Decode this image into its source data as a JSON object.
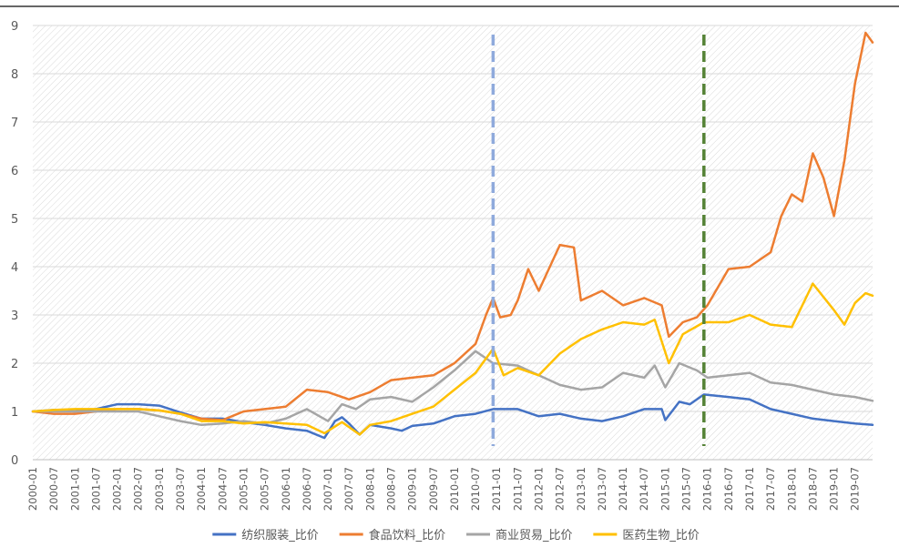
{
  "chart_data": {
    "type": "line",
    "title": "",
    "xlabel": "",
    "ylabel": "",
    "ylim": [
      0,
      9
    ],
    "yticks": [
      "0",
      "1",
      "2",
      "3",
      "4",
      "5",
      "6",
      "7",
      "8",
      "9"
    ],
    "xticks": [
      "2000-01",
      "2000-07",
      "2001-01",
      "2001-07",
      "2002-01",
      "2002-07",
      "2003-01",
      "2003-07",
      "2004-01",
      "2004-07",
      "2005-01",
      "2005-07",
      "2006-01",
      "2006-07",
      "2007-01",
      "2007-07",
      "2008-01",
      "2008-07",
      "2009-01",
      "2009-07",
      "2010-01",
      "2010-07",
      "2011-01",
      "2011-07",
      "2012-01",
      "2012-07",
      "2013-01",
      "2013-07",
      "2014-01",
      "2014-07",
      "2015-01",
      "2015-07",
      "2016-01",
      "2016-07",
      "2017-01",
      "2017-07",
      "2018-01",
      "2018-07",
      "2019-01",
      "2019-07"
    ],
    "x_range": [
      "2000-01",
      "2019-12"
    ],
    "grid": true,
    "background": "diagonal hatch",
    "legend_position": "bottom",
    "vlines": [
      {
        "x": "2010-12",
        "color": "#8faadc",
        "style": "dashed"
      },
      {
        "x": "2015-12",
        "color": "#548235",
        "style": "dashed"
      }
    ],
    "series": [
      {
        "name": "纺织服装_比价",
        "color": "#4472c4",
        "points": [
          [
            "2000-01",
            1.0
          ],
          [
            "2000-07",
            1.03
          ],
          [
            "2001-01",
            1.0
          ],
          [
            "2001-07",
            1.05
          ],
          [
            "2002-01",
            1.15
          ],
          [
            "2002-07",
            1.15
          ],
          [
            "2003-01",
            1.12
          ],
          [
            "2003-07",
            0.98
          ],
          [
            "2004-01",
            0.85
          ],
          [
            "2004-07",
            0.85
          ],
          [
            "2005-01",
            0.78
          ],
          [
            "2005-07",
            0.72
          ],
          [
            "2006-01",
            0.65
          ],
          [
            "2006-07",
            0.6
          ],
          [
            "2006-12",
            0.45
          ],
          [
            "2007-03",
            0.8
          ],
          [
            "2007-05",
            0.88
          ],
          [
            "2007-07",
            0.75
          ],
          [
            "2007-10",
            0.52
          ],
          [
            "2008-01",
            0.72
          ],
          [
            "2008-07",
            0.65
          ],
          [
            "2008-10",
            0.6
          ],
          [
            "2009-01",
            0.7
          ],
          [
            "2009-07",
            0.75
          ],
          [
            "2010-01",
            0.9
          ],
          [
            "2010-07",
            0.95
          ],
          [
            "2010-12",
            1.05
          ],
          [
            "2011-07",
            1.05
          ],
          [
            "2012-01",
            0.9
          ],
          [
            "2012-07",
            0.95
          ],
          [
            "2013-01",
            0.85
          ],
          [
            "2013-07",
            0.8
          ],
          [
            "2014-01",
            0.9
          ],
          [
            "2014-07",
            1.05
          ],
          [
            "2014-12",
            1.05
          ],
          [
            "2015-01",
            0.82
          ],
          [
            "2015-05",
            1.2
          ],
          [
            "2015-08",
            1.15
          ],
          [
            "2015-12",
            1.35
          ],
          [
            "2016-07",
            1.3
          ],
          [
            "2017-01",
            1.25
          ],
          [
            "2017-07",
            1.05
          ],
          [
            "2018-01",
            0.95
          ],
          [
            "2018-07",
            0.85
          ],
          [
            "2019-01",
            0.8
          ],
          [
            "2019-07",
            0.75
          ],
          [
            "2019-12",
            0.72
          ]
        ]
      },
      {
        "name": "食品饮料_比价",
        "color": "#ed7d31",
        "points": [
          [
            "2000-01",
            1.0
          ],
          [
            "2000-07",
            0.95
          ],
          [
            "2001-01",
            0.95
          ],
          [
            "2001-07",
            1.0
          ],
          [
            "2002-01",
            1.05
          ],
          [
            "2002-07",
            1.05
          ],
          [
            "2003-01",
            1.02
          ],
          [
            "2003-07",
            0.95
          ],
          [
            "2004-01",
            0.85
          ],
          [
            "2004-07",
            0.82
          ],
          [
            "2005-01",
            1.0
          ],
          [
            "2005-07",
            1.05
          ],
          [
            "2006-01",
            1.1
          ],
          [
            "2006-07",
            1.45
          ],
          [
            "2007-01",
            1.4
          ],
          [
            "2007-07",
            1.25
          ],
          [
            "2008-01",
            1.4
          ],
          [
            "2008-07",
            1.65
          ],
          [
            "2009-01",
            1.7
          ],
          [
            "2009-07",
            1.75
          ],
          [
            "2010-01",
            2.0
          ],
          [
            "2010-07",
            2.4
          ],
          [
            "2010-10",
            3.0
          ],
          [
            "2010-12",
            3.35
          ],
          [
            "2011-02",
            2.95
          ],
          [
            "2011-05",
            3.0
          ],
          [
            "2011-07",
            3.3
          ],
          [
            "2011-10",
            3.95
          ],
          [
            "2012-01",
            3.5
          ],
          [
            "2012-07",
            4.45
          ],
          [
            "2012-11",
            4.4
          ],
          [
            "2013-01",
            3.3
          ],
          [
            "2013-07",
            3.5
          ],
          [
            "2014-01",
            3.2
          ],
          [
            "2014-07",
            3.35
          ],
          [
            "2014-12",
            3.2
          ],
          [
            "2015-02",
            2.55
          ],
          [
            "2015-06",
            2.85
          ],
          [
            "2015-10",
            2.95
          ],
          [
            "2016-01",
            3.2
          ],
          [
            "2016-07",
            3.95
          ],
          [
            "2017-01",
            4.0
          ],
          [
            "2017-07",
            4.3
          ],
          [
            "2017-10",
            5.05
          ],
          [
            "2018-01",
            5.5
          ],
          [
            "2018-04",
            5.35
          ],
          [
            "2018-07",
            6.35
          ],
          [
            "2018-10",
            5.85
          ],
          [
            "2019-01",
            5.05
          ],
          [
            "2019-04",
            6.2
          ],
          [
            "2019-07",
            7.8
          ],
          [
            "2019-10",
            8.85
          ],
          [
            "2019-12",
            8.65
          ]
        ]
      },
      {
        "name": "商业贸易_比价",
        "color": "#a5a5a5",
        "points": [
          [
            "2000-01",
            1.0
          ],
          [
            "2000-07",
            1.0
          ],
          [
            "2001-01",
            1.0
          ],
          [
            "2001-07",
            1.0
          ],
          [
            "2002-01",
            1.0
          ],
          [
            "2002-07",
            1.0
          ],
          [
            "2003-01",
            0.9
          ],
          [
            "2003-07",
            0.8
          ],
          [
            "2004-01",
            0.72
          ],
          [
            "2004-07",
            0.75
          ],
          [
            "2005-01",
            0.8
          ],
          [
            "2005-07",
            0.75
          ],
          [
            "2006-01",
            0.85
          ],
          [
            "2006-07",
            1.05
          ],
          [
            "2007-01",
            0.8
          ],
          [
            "2007-05",
            1.15
          ],
          [
            "2007-09",
            1.05
          ],
          [
            "2008-01",
            1.25
          ],
          [
            "2008-07",
            1.3
          ],
          [
            "2009-01",
            1.2
          ],
          [
            "2009-07",
            1.5
          ],
          [
            "2010-01",
            1.85
          ],
          [
            "2010-07",
            2.25
          ],
          [
            "2010-12",
            2.0
          ],
          [
            "2011-07",
            1.95
          ],
          [
            "2012-01",
            1.75
          ],
          [
            "2012-07",
            1.55
          ],
          [
            "2013-01",
            1.45
          ],
          [
            "2013-07",
            1.5
          ],
          [
            "2014-01",
            1.8
          ],
          [
            "2014-07",
            1.7
          ],
          [
            "2014-10",
            1.95
          ],
          [
            "2015-01",
            1.5
          ],
          [
            "2015-05",
            2.0
          ],
          [
            "2015-10",
            1.85
          ],
          [
            "2016-01",
            1.7
          ],
          [
            "2016-07",
            1.75
          ],
          [
            "2017-01",
            1.8
          ],
          [
            "2017-07",
            1.6
          ],
          [
            "2018-01",
            1.55
          ],
          [
            "2018-07",
            1.45
          ],
          [
            "2019-01",
            1.35
          ],
          [
            "2019-07",
            1.3
          ],
          [
            "2019-12",
            1.22
          ]
        ]
      },
      {
        "name": "医药生物_比价",
        "color": "#ffc000",
        "points": [
          [
            "2000-01",
            1.0
          ],
          [
            "2000-07",
            1.03
          ],
          [
            "2001-01",
            1.05
          ],
          [
            "2001-07",
            1.05
          ],
          [
            "2002-01",
            1.05
          ],
          [
            "2002-07",
            1.05
          ],
          [
            "2003-01",
            1.02
          ],
          [
            "2003-07",
            0.95
          ],
          [
            "2004-01",
            0.8
          ],
          [
            "2004-07",
            0.8
          ],
          [
            "2005-01",
            0.75
          ],
          [
            "2005-07",
            0.78
          ],
          [
            "2006-01",
            0.75
          ],
          [
            "2006-07",
            0.72
          ],
          [
            "2006-12",
            0.55
          ],
          [
            "2007-05",
            0.78
          ],
          [
            "2007-10",
            0.52
          ],
          [
            "2008-01",
            0.72
          ],
          [
            "2008-07",
            0.8
          ],
          [
            "2009-01",
            0.95
          ],
          [
            "2009-07",
            1.1
          ],
          [
            "2010-01",
            1.45
          ],
          [
            "2010-07",
            1.8
          ],
          [
            "2010-12",
            2.3
          ],
          [
            "2011-03",
            1.75
          ],
          [
            "2011-07",
            1.9
          ],
          [
            "2012-01",
            1.75
          ],
          [
            "2012-07",
            2.2
          ],
          [
            "2013-01",
            2.5
          ],
          [
            "2013-07",
            2.7
          ],
          [
            "2014-01",
            2.85
          ],
          [
            "2014-07",
            2.8
          ],
          [
            "2014-10",
            2.9
          ],
          [
            "2015-02",
            2.0
          ],
          [
            "2015-06",
            2.6
          ],
          [
            "2015-12",
            2.85
          ],
          [
            "2016-07",
            2.85
          ],
          [
            "2017-01",
            3.0
          ],
          [
            "2017-07",
            2.8
          ],
          [
            "2018-01",
            2.75
          ],
          [
            "2018-07",
            3.65
          ],
          [
            "2019-01",
            3.1
          ],
          [
            "2019-04",
            2.8
          ],
          [
            "2019-07",
            3.25
          ],
          [
            "2019-10",
            3.45
          ],
          [
            "2019-12",
            3.4
          ]
        ]
      }
    ]
  }
}
